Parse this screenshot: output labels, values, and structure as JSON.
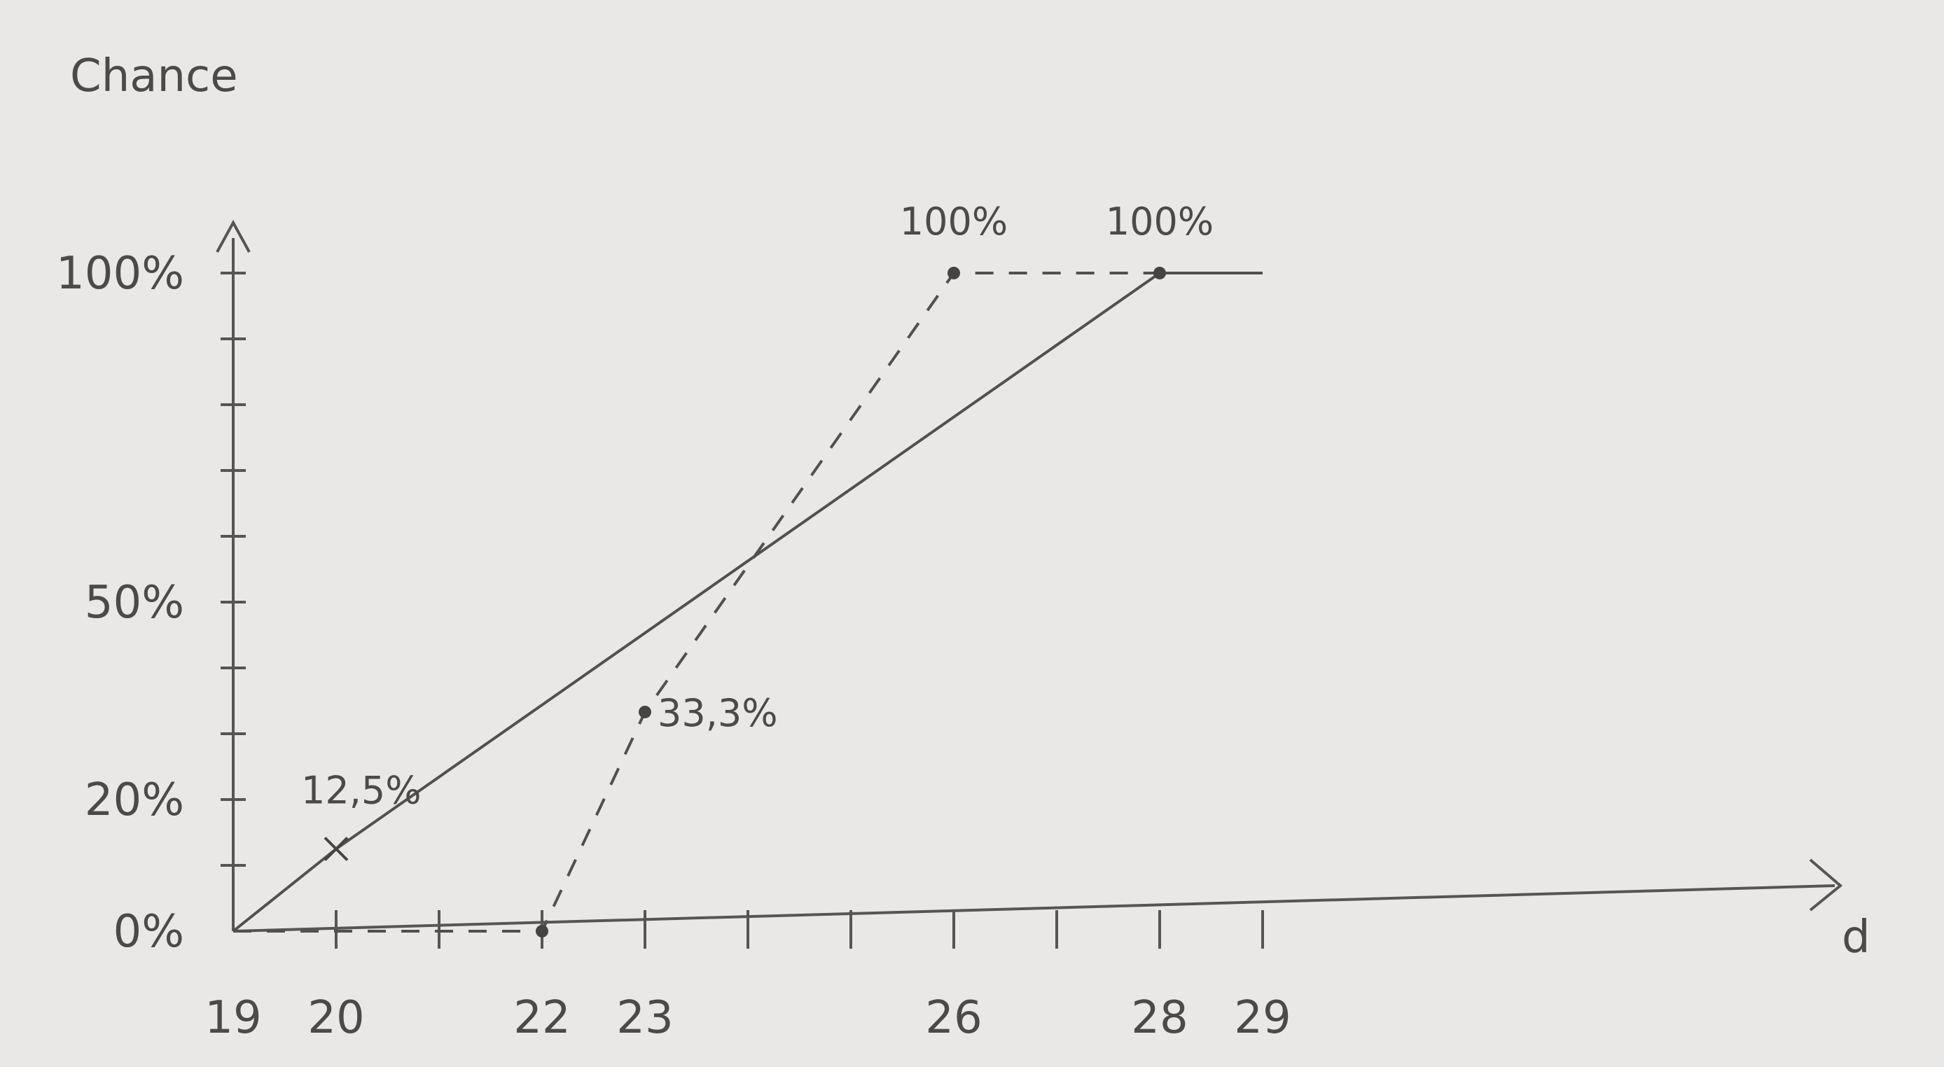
{
  "chart_data": {
    "type": "line",
    "title": "",
    "ylabel": "Chance",
    "xlabel": "d",
    "x_ticks": [
      19,
      20,
      22,
      23,
      26,
      28,
      29
    ],
    "x_tick_labels": [
      "19",
      "20",
      "22",
      "23",
      "26",
      "28",
      "29"
    ],
    "y_ticks": [
      0,
      20,
      50,
      100
    ],
    "y_tick_labels": [
      "0%",
      "20%",
      "50%",
      "100%"
    ],
    "xlim": [
      19,
      29
    ],
    "ylim": [
      0,
      100
    ],
    "series": [
      {
        "style": "solid",
        "points": [
          [
            19,
            0
          ],
          [
            20,
            12.5
          ],
          [
            28,
            100
          ],
          [
            29,
            100
          ]
        ],
        "marked": [
          [
            20,
            12.5,
            "cross"
          ],
          [
            28,
            100,
            "dot"
          ]
        ]
      },
      {
        "style": "dashed",
        "points": [
          [
            19,
            0
          ],
          [
            22,
            0
          ],
          [
            23,
            33.3
          ],
          [
            26,
            100
          ],
          [
            28,
            100
          ]
        ],
        "marked": [
          [
            22,
            0,
            "dot"
          ],
          [
            23,
            33.3,
            "dot"
          ],
          [
            26,
            100,
            "dot"
          ]
        ]
      }
    ],
    "annotations": [
      {
        "x": 20,
        "y": 12.5,
        "text": "12,5%"
      },
      {
        "x": 23,
        "y": 33.3,
        "text": "33,3%"
      },
      {
        "x": 26,
        "y": 100,
        "text": "100%"
      },
      {
        "x": 28,
        "y": 100,
        "text": "100%"
      }
    ]
  }
}
